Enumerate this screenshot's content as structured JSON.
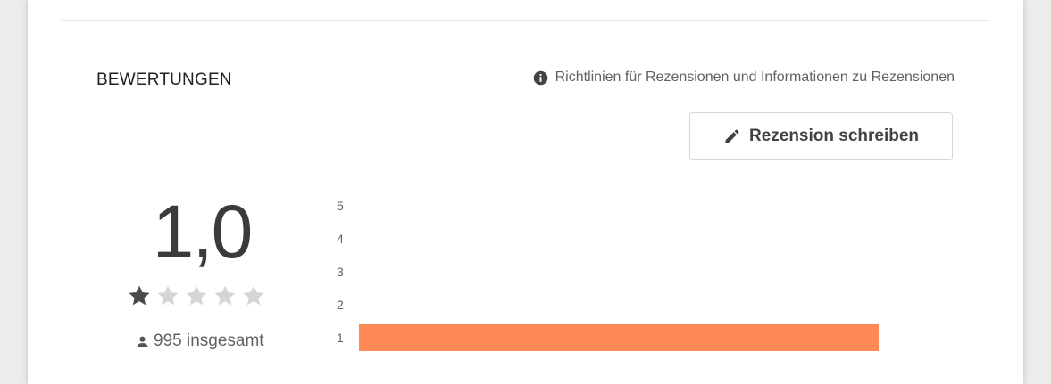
{
  "ratings": {
    "section_title": "BEWERTUNGEN",
    "guidelines_link": "Richtlinien für Rezensionen und Informationen zu Rezensionen",
    "write_review_label": "Rezension schreiben",
    "average_score": "1,0",
    "star_rating": 1,
    "max_stars": 5,
    "total_text": "995 insgesamt",
    "histogram": [
      {
        "label": "5",
        "fraction": 0
      },
      {
        "label": "4",
        "fraction": 0
      },
      {
        "label": "3",
        "fraction": 0
      },
      {
        "label": "2",
        "fraction": 0
      },
      {
        "label": "1",
        "fraction": 1
      }
    ]
  },
  "colors": {
    "bar": "#ff8a56",
    "star_filled": "#4a4a4a",
    "star_empty": "#d5d5d5"
  },
  "icons": {
    "info": "info-icon",
    "pencil": "pencil-icon",
    "person": "person-icon",
    "star": "star-icon"
  }
}
